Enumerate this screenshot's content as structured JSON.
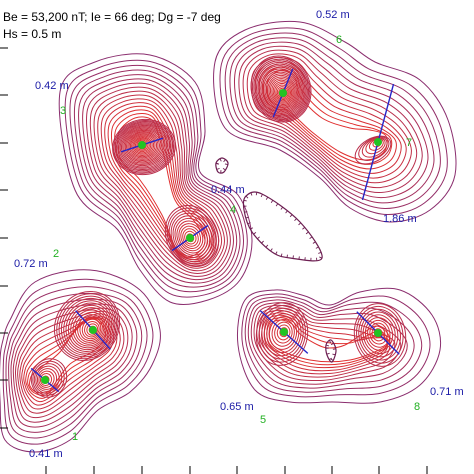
{
  "header": {
    "line1": "Be = 53,200 nT; Ie = 66 deg; Dg = -7 deg",
    "line2": "Hs = 0.5 m"
  },
  "colors": {
    "contour_outer": "#8a2d6e",
    "contour_inner": "#e03030",
    "depth_label": "#1a1aa6",
    "source_marker": "#22c322",
    "source_axis": "#2626c8",
    "number_label": "#22b022"
  },
  "chart_data": {
    "type": "contour",
    "xlim": [
      0,
      474
    ],
    "ylim": [
      0,
      474
    ],
    "y_axis_direction": "down",
    "sources": [
      {
        "id": "1",
        "x": 45,
        "y": 380,
        "depth_label": "0.41 m",
        "axis_angle_deg": 40
      },
      {
        "id": "2",
        "x": 93,
        "y": 330,
        "depth_label": "0.72 m",
        "axis_angle_deg": 48
      },
      {
        "id": "3",
        "x": 142,
        "y": 145,
        "depth_label": "0.42 m",
        "axis_angle_deg": -18
      },
      {
        "id": "4",
        "x": 190,
        "y": 238,
        "depth_label": "0.44 m",
        "axis_angle_deg": -35
      },
      {
        "id": "5",
        "x": 284,
        "y": 332,
        "depth_label": "0.65 m",
        "axis_angle_deg": 42
      },
      {
        "id": "6",
        "x": 283,
        "y": 93,
        "depth_label": "0.52 m",
        "axis_angle_deg": -68
      },
      {
        "id": "7",
        "x": 378,
        "y": 142,
        "depth_label": "1.86 m",
        "axis_angle_deg": -75
      },
      {
        "id": "8",
        "x": 378,
        "y": 333,
        "depth_label": "0.71 m",
        "axis_angle_deg": 45
      }
    ],
    "x_ticks": [
      46,
      94,
      142,
      190,
      237,
      285,
      332,
      379,
      427
    ],
    "y_ticks": [
      48,
      95,
      143,
      190,
      238,
      286,
      333,
      380,
      428
    ]
  }
}
